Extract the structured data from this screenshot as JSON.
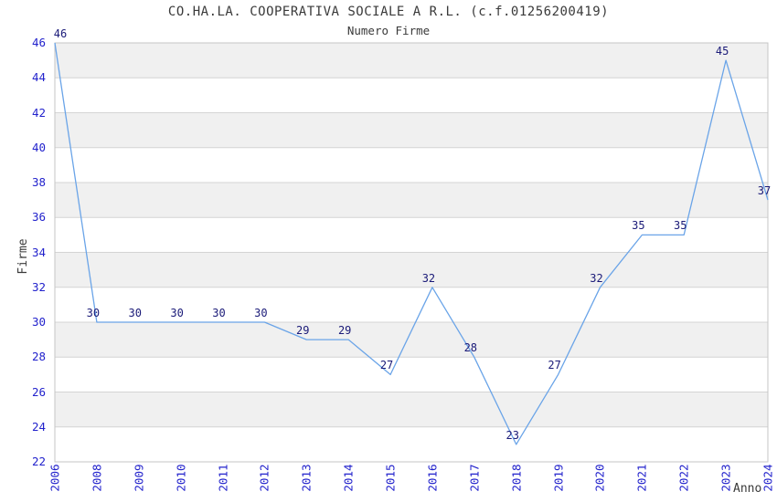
{
  "chart_data": {
    "type": "line",
    "title": "CO.HA.LA. COOPERATIVA SOCIALE A R.L. (c.f.01256200419)",
    "subtitle": "Numero Firme",
    "xlabel": "Anno",
    "ylabel": "Firme",
    "categories": [
      "2006",
      "2008",
      "2009",
      "2010",
      "2011",
      "2012",
      "2013",
      "2014",
      "2015",
      "2016",
      "2017",
      "2018",
      "2019",
      "2020",
      "2021",
      "2022",
      "2023",
      "2024"
    ],
    "values": [
      46,
      30,
      30,
      30,
      30,
      30,
      29,
      29,
      27,
      32,
      28,
      23,
      27,
      32,
      35,
      35,
      45,
      37
    ],
    "ylim": [
      22,
      46
    ],
    "ytick_step": 2,
    "grid": true,
    "alternating_bands": true,
    "legend": "none",
    "colors": {
      "line": "#6aa4e8",
      "axis_tick_label": "#2222cc",
      "point_label": "#1a1a78",
      "gridline": "#d4d4d4",
      "band": "#f0f0f0",
      "plot_border": "#c6c6c6",
      "title_text": "#3a3a3a",
      "background": "#ffffff"
    }
  }
}
